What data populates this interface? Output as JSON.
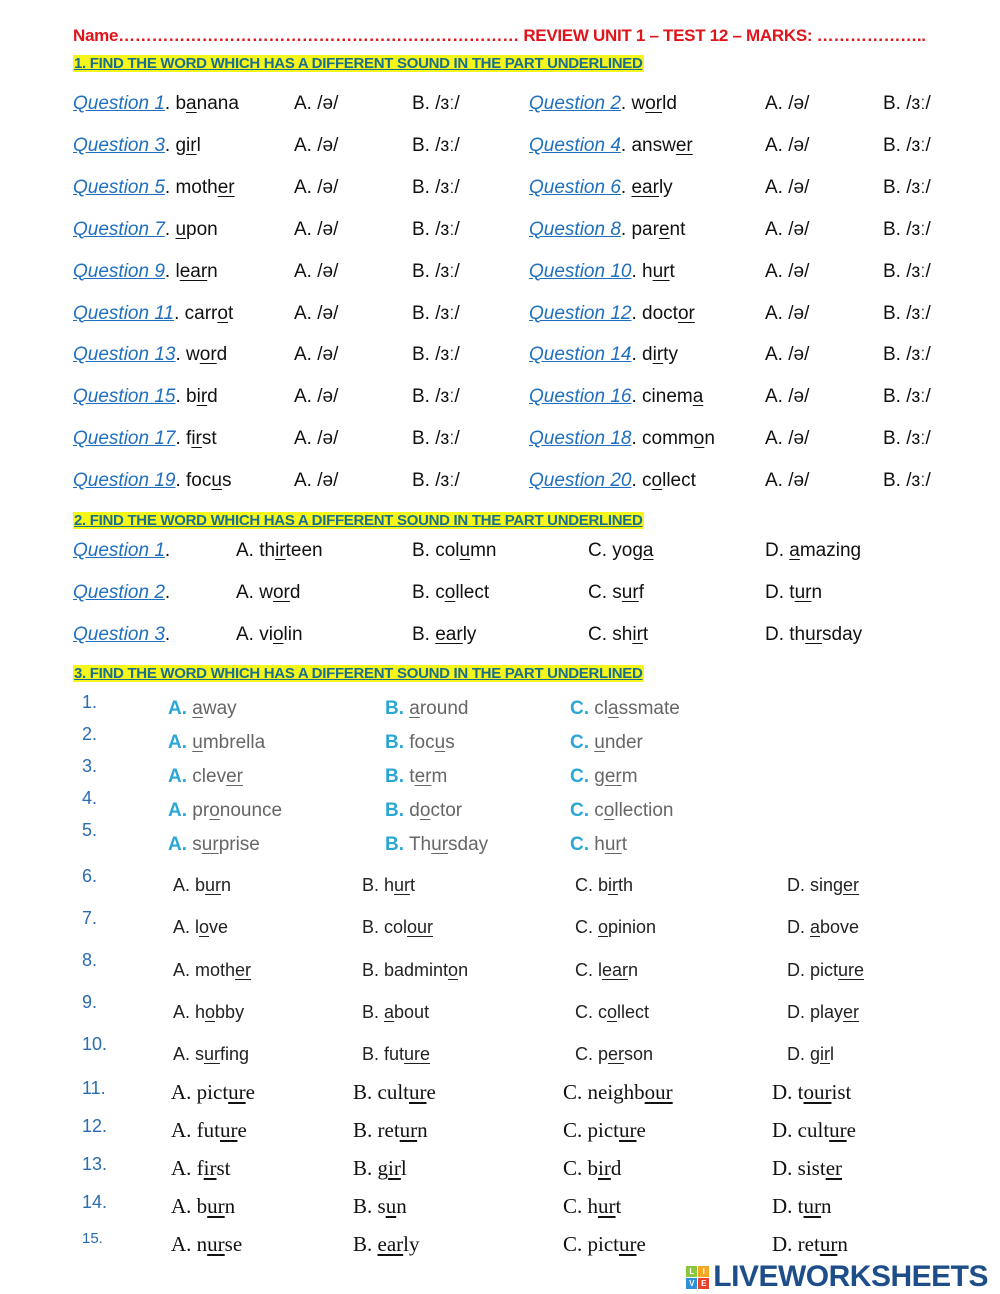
{
  "header": {
    "title": "Name……………………………………………………………… REVIEW UNIT 1 – TEST 12 – MARKS: ……………….."
  },
  "section1": {
    "heading": "1. FIND THE WORD WHICH HAS A DIFFERENT SOUND IN THE PART UNDERLINED",
    "option_a": "A. /ə/",
    "option_b": "B. /ɜː/",
    "questions": [
      {
        "label": "Question 1",
        "word": [
          "b",
          "a",
          "nana"
        ]
      },
      {
        "label": "Question 2",
        "word": [
          "w",
          "or",
          "ld"
        ]
      },
      {
        "label": "Question 3",
        "word": [
          "g",
          "ir",
          "l"
        ]
      },
      {
        "label": "Question 4",
        "word": [
          "answ",
          "er",
          ""
        ]
      },
      {
        "label": "Question 5",
        "word": [
          "moth",
          "er",
          ""
        ]
      },
      {
        "label": "Question 6",
        "word": [
          "",
          "ear",
          "ly"
        ]
      },
      {
        "label": "Question 7",
        "word": [
          "",
          "u",
          "pon"
        ]
      },
      {
        "label": "Question 8",
        "word": [
          "par",
          "e",
          "nt"
        ]
      },
      {
        "label": "Question 9",
        "word": [
          "l",
          "ear",
          "n"
        ]
      },
      {
        "label": "Question 10",
        "word": [
          "h",
          "ur",
          "t"
        ]
      },
      {
        "label": "Question 11",
        "word": [
          "carr",
          "o",
          "t"
        ]
      },
      {
        "label": "Question 12",
        "word": [
          "doct",
          "or",
          ""
        ]
      },
      {
        "label": "Question 13",
        "word": [
          "w",
          "or",
          "d"
        ]
      },
      {
        "label": "Question 14",
        "word": [
          "d",
          "ir",
          "ty"
        ]
      },
      {
        "label": "Question 15",
        "word": [
          "b",
          "ir",
          "d"
        ]
      },
      {
        "label": "Question 16",
        "word": [
          "cinem",
          "a",
          ""
        ]
      },
      {
        "label": "Question 17",
        "word": [
          "f",
          "ir",
          "st"
        ]
      },
      {
        "label": "Question 18",
        "word": [
          "comm",
          "o",
          "n"
        ]
      },
      {
        "label": "Question 19",
        "word": [
          "foc",
          "u",
          "s"
        ]
      },
      {
        "label": "Question 20",
        "word": [
          "c",
          "o",
          "llect"
        ]
      }
    ]
  },
  "section2": {
    "heading": "2. FIND THE WORD WHICH HAS A DIFFERENT SOUND IN THE PART UNDERLINED",
    "questions": [
      {
        "label": "Question 1",
        "options": [
          [
            "A. th",
            "ir",
            "teen"
          ],
          [
            "B. col",
            "u",
            "mn"
          ],
          [
            "C. yog",
            "a",
            ""
          ],
          [
            "D. ",
            "a",
            "mazing"
          ]
        ]
      },
      {
        "label": "Question 2",
        "options": [
          [
            "A. w",
            "or",
            "d"
          ],
          [
            "B. c",
            "o",
            "llect"
          ],
          [
            "C. s",
            "ur",
            "f"
          ],
          [
            "D. t",
            "ur",
            "n"
          ]
        ]
      },
      {
        "label": "Question 3",
        "options": [
          [
            "A. vi",
            "o",
            "lin"
          ],
          [
            "B. ",
            "ear",
            "ly"
          ],
          [
            "C. sh",
            "ir",
            "t"
          ],
          [
            "D. th",
            "ur",
            "sday"
          ]
        ]
      }
    ]
  },
  "section3": {
    "heading": "3. FIND THE WORD WHICH HAS A DIFFERENT SOUND IN THE PART UNDERLINED",
    "group1": [
      {
        "num": "1.",
        "options": [
          [
            "A.",
            "",
            "a",
            "way"
          ],
          [
            "B.",
            "",
            "a",
            "round"
          ],
          [
            "C.",
            "cl",
            "a",
            "ssmate"
          ]
        ]
      },
      {
        "num": "2.",
        "options": [
          [
            "A.",
            "",
            "u",
            "mbrella"
          ],
          [
            "B.",
            "foc",
            "u",
            "s"
          ],
          [
            "C.",
            "",
            "u",
            "nder"
          ]
        ]
      },
      {
        "num": "3.",
        "options": [
          [
            "A.",
            "clev",
            "er",
            ""
          ],
          [
            "B.",
            "t",
            "er",
            "m"
          ],
          [
            "C.",
            "g",
            "er",
            "m"
          ]
        ]
      },
      {
        "num": "4.",
        "options": [
          [
            "A.",
            "pr",
            "o",
            "nounce"
          ],
          [
            "B.",
            "d",
            "o",
            "ctor"
          ],
          [
            "C.",
            "c",
            "o",
            "llection"
          ]
        ]
      },
      {
        "num": "5.",
        "options": [
          [
            "A.",
            "s",
            "ur",
            "prise"
          ],
          [
            "B.",
            "Th",
            "ur",
            "sday"
          ],
          [
            "C.",
            "h",
            "ur",
            "t"
          ]
        ]
      }
    ],
    "group2": [
      {
        "num": "6.",
        "options": [
          [
            "A. b",
            "ur",
            "n"
          ],
          [
            "B. h",
            "ur",
            "t"
          ],
          [
            "C. b",
            "ir",
            "th"
          ],
          [
            "D. sing",
            "er",
            ""
          ]
        ]
      },
      {
        "num": "7.",
        "options": [
          [
            "A. l",
            "o",
            "ve"
          ],
          [
            "B. col",
            "our",
            ""
          ],
          [
            "C. ",
            "o",
            "pinion"
          ],
          [
            "D. ",
            "a",
            "bove"
          ]
        ]
      },
      {
        "num": "8.",
        "options": [
          [
            "A. moth",
            "er",
            ""
          ],
          [
            "B. badmint",
            "o",
            "n"
          ],
          [
            "C. l",
            "ear",
            "n"
          ],
          [
            "D. pict",
            "ure",
            ""
          ]
        ]
      },
      {
        "num": "9.",
        "options": [
          [
            "A. h",
            "o",
            "bby"
          ],
          [
            "B. ",
            "a",
            "bout"
          ],
          [
            "C. c",
            "o",
            "llect"
          ],
          [
            "D. play",
            "er",
            ""
          ]
        ]
      },
      {
        "num": "10.",
        "options": [
          [
            "A. s",
            "ur",
            "fing"
          ],
          [
            "B. fut",
            "ure",
            ""
          ],
          [
            "C. p",
            "er",
            "son"
          ],
          [
            "D. g",
            "ir",
            "l"
          ]
        ]
      }
    ],
    "group3": [
      {
        "num": "11.",
        "options": [
          [
            "A. pict",
            "ur",
            "e"
          ],
          [
            "B. cult",
            "ur",
            "e"
          ],
          [
            "C. neighb",
            "our",
            ""
          ],
          [
            "D. t",
            "our",
            "ist"
          ]
        ]
      },
      {
        "num": "12.",
        "options": [
          [
            "A. fut",
            "ur",
            "e"
          ],
          [
            "B. ret",
            "ur",
            "n"
          ],
          [
            "C. pict",
            "ur",
            "e"
          ],
          [
            "D. cult",
            "ur",
            "e"
          ]
        ]
      },
      {
        "num": "13.",
        "options": [
          [
            "A. f",
            "ir",
            "st"
          ],
          [
            "B. g",
            "ir",
            "l"
          ],
          [
            "C. b",
            "ir",
            "d"
          ],
          [
            "D. sist",
            "er",
            ""
          ]
        ]
      },
      {
        "num": "14.",
        "options": [
          [
            "A. b",
            "ur",
            "n"
          ],
          [
            "B. s",
            "u",
            "n"
          ],
          [
            "C. h",
            "ur",
            "t"
          ],
          [
            "D. t",
            "ur",
            "n"
          ]
        ]
      },
      {
        "num": "15.",
        "options": [
          [
            "A. n",
            "ur",
            "se"
          ],
          [
            "B. ",
            "ear",
            "ly"
          ],
          [
            "C. pict",
            "ur",
            "e"
          ],
          [
            "D. ret",
            "ur",
            "n"
          ]
        ]
      }
    ]
  },
  "watermark": {
    "brand": "LIVEWORKSHEETS",
    "tiles": [
      "L",
      "I",
      "V",
      "E"
    ],
    "tile_colors": [
      "#8dc63f",
      "#f7a823",
      "#2f8fd8",
      "#e8412c"
    ]
  }
}
